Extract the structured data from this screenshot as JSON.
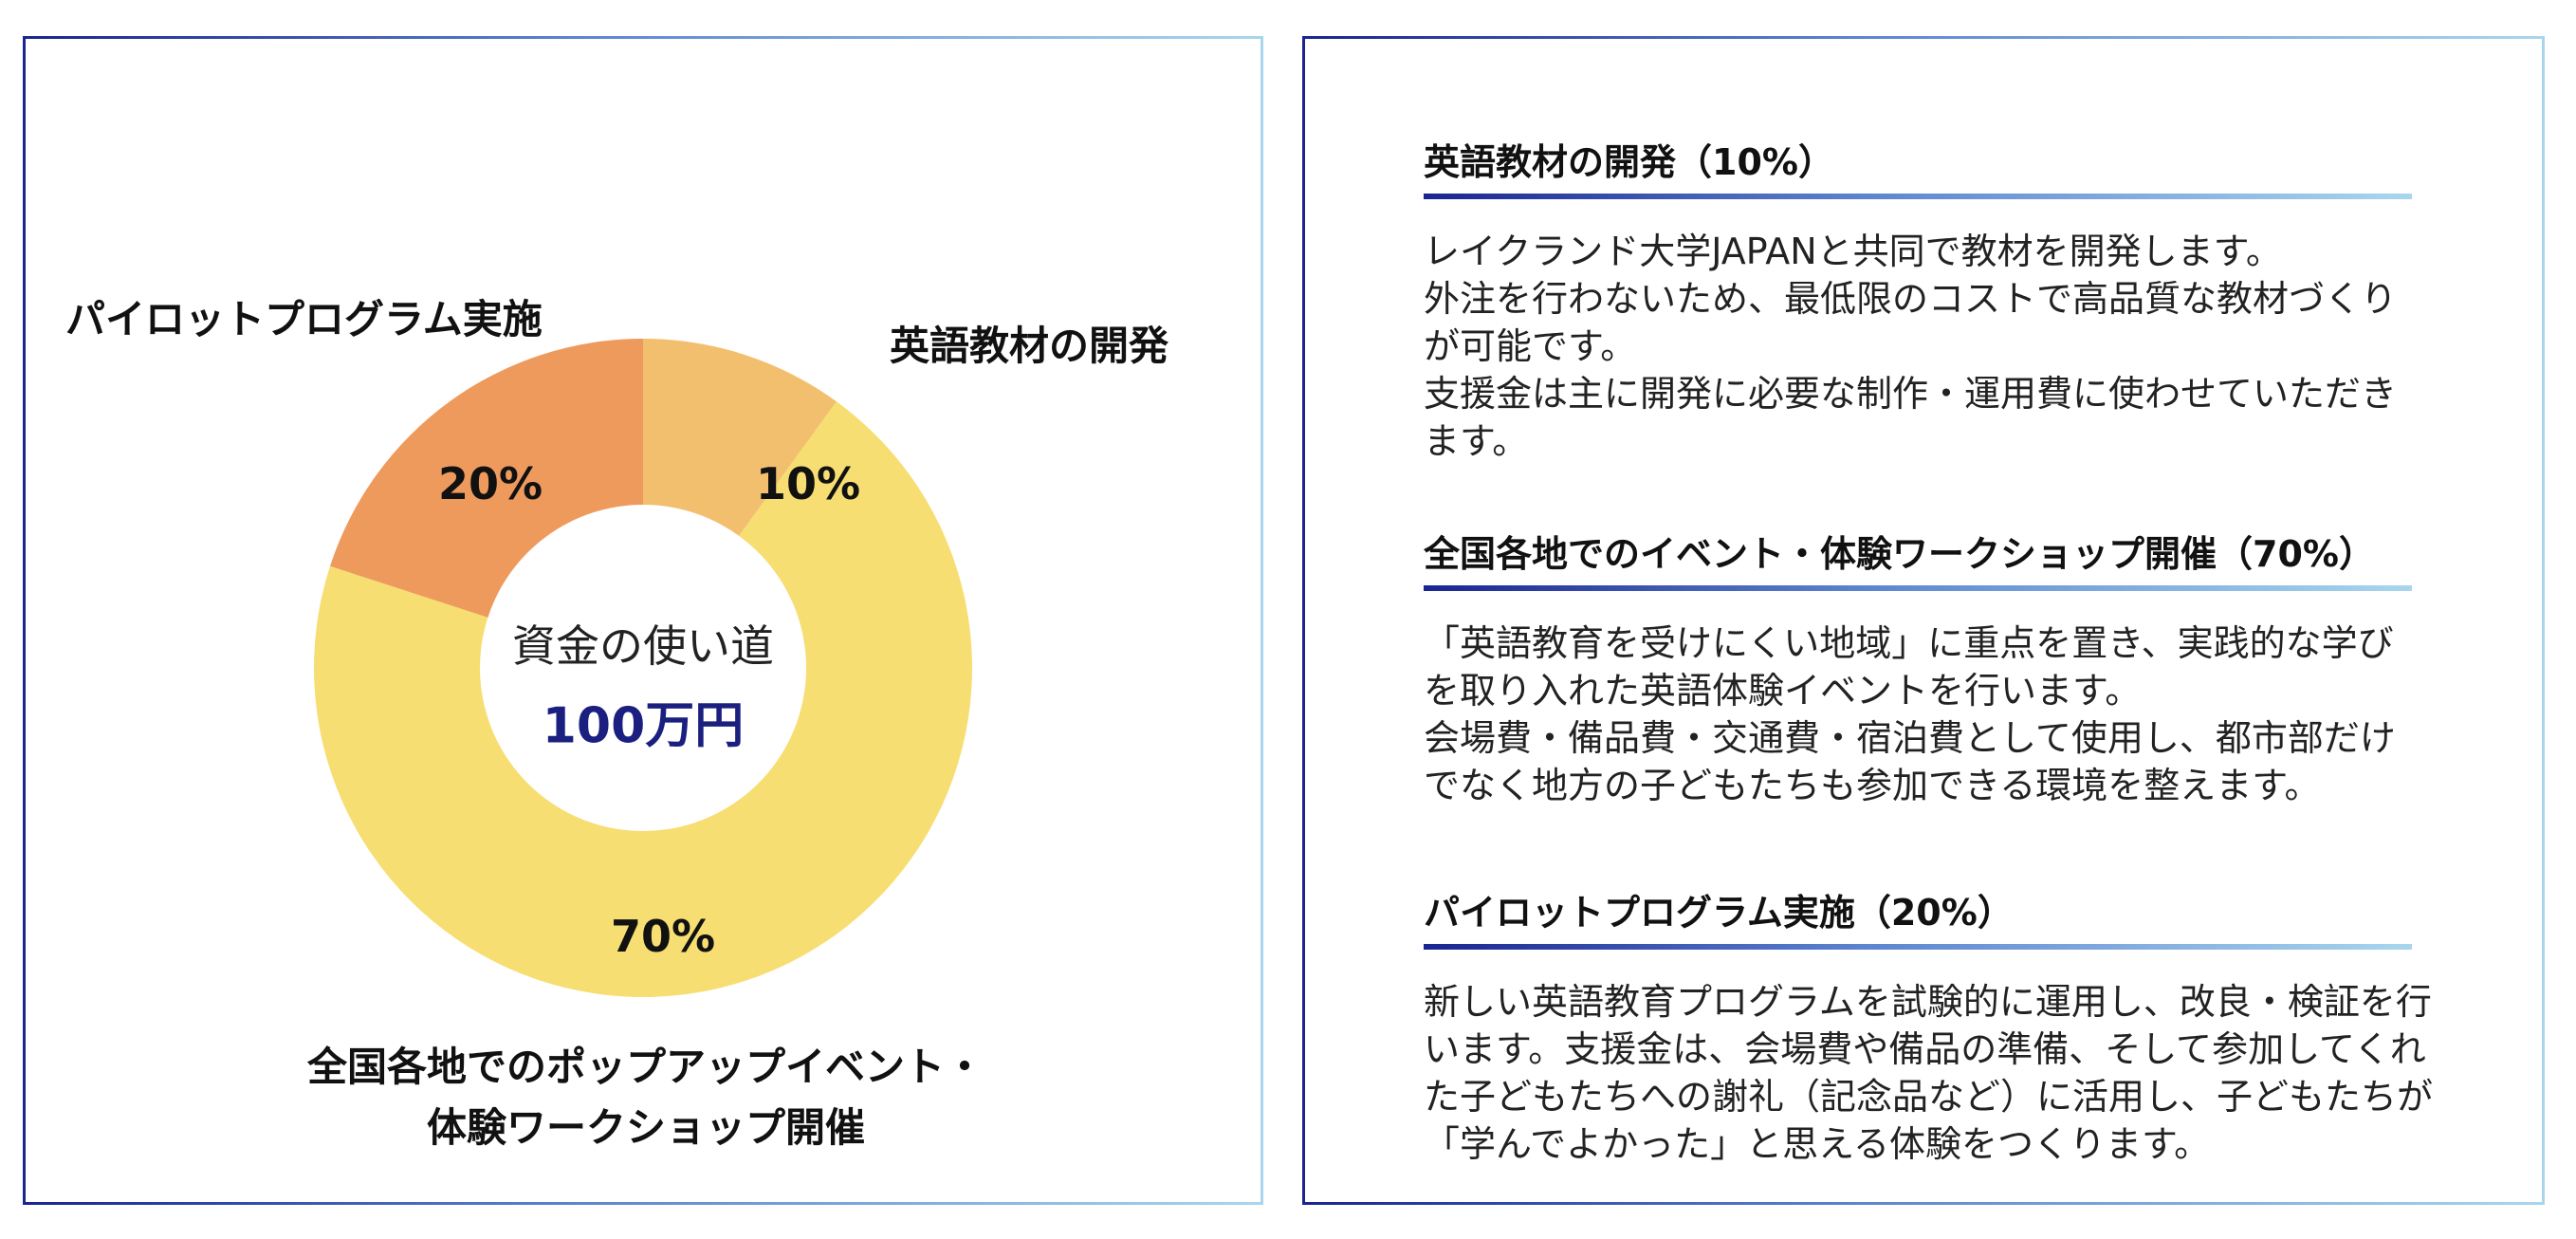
{
  "chart_data": {
    "type": "pie",
    "donut": true,
    "center_label": "資金の使い道",
    "center_value": "100万円",
    "categories": [
      "英語教材の開発",
      "全国各地でのポップアップイベント・体験ワークショップ開催",
      "パイロットプログラム実施"
    ],
    "values": [
      10,
      70,
      20
    ],
    "data_labels": [
      "10%",
      "70%",
      "20%"
    ],
    "colors": [
      "#F2BF6E",
      "#F7DE72",
      "#EF9A5D"
    ],
    "slice_labels": {
      "pilot": "パイロットプログラム実施",
      "materials": "英語教材の開発",
      "events_line1": "全国各地でのポップアップイベント・",
      "events_line2": "体験ワークショップ開催"
    }
  },
  "sections": [
    {
      "title": "英語教材の開発（10%）",
      "lines": [
        "レイクランド大学JAPANと共同で教材を開発します。",
        "外注を行わないため、最低限のコストで高品質な教材づくり",
        "が可能です。",
        "支援金は主に開発に必要な制作・運用費に使わせていただき",
        "ます。"
      ]
    },
    {
      "title": "全国各地でのイベント・体験ワークショップ開催（70%）",
      "lines": [
        "「英語教育を受けにくい地域」に重点を置き、実践的な学び",
        "を取り入れた英語体験イベントを行います。",
        "会場費・備品費・交通費・宿泊費として使用し、都市部だけ",
        "でなく地方の子どもたちも参加できる環境を整えます。"
      ]
    },
    {
      "title": "パイロットプログラム実施（20%）",
      "lines": [
        "新しい英語教育プログラムを試験的に運用し、改良・検証を行",
        "います。支援金は、会場費や備品の準備、そして参加してくれ",
        "た子どもたちへの謝礼（記念品など）に活用し、子どもたちが",
        "「学んでよかった」と思える体験をつくります。"
      ]
    }
  ]
}
